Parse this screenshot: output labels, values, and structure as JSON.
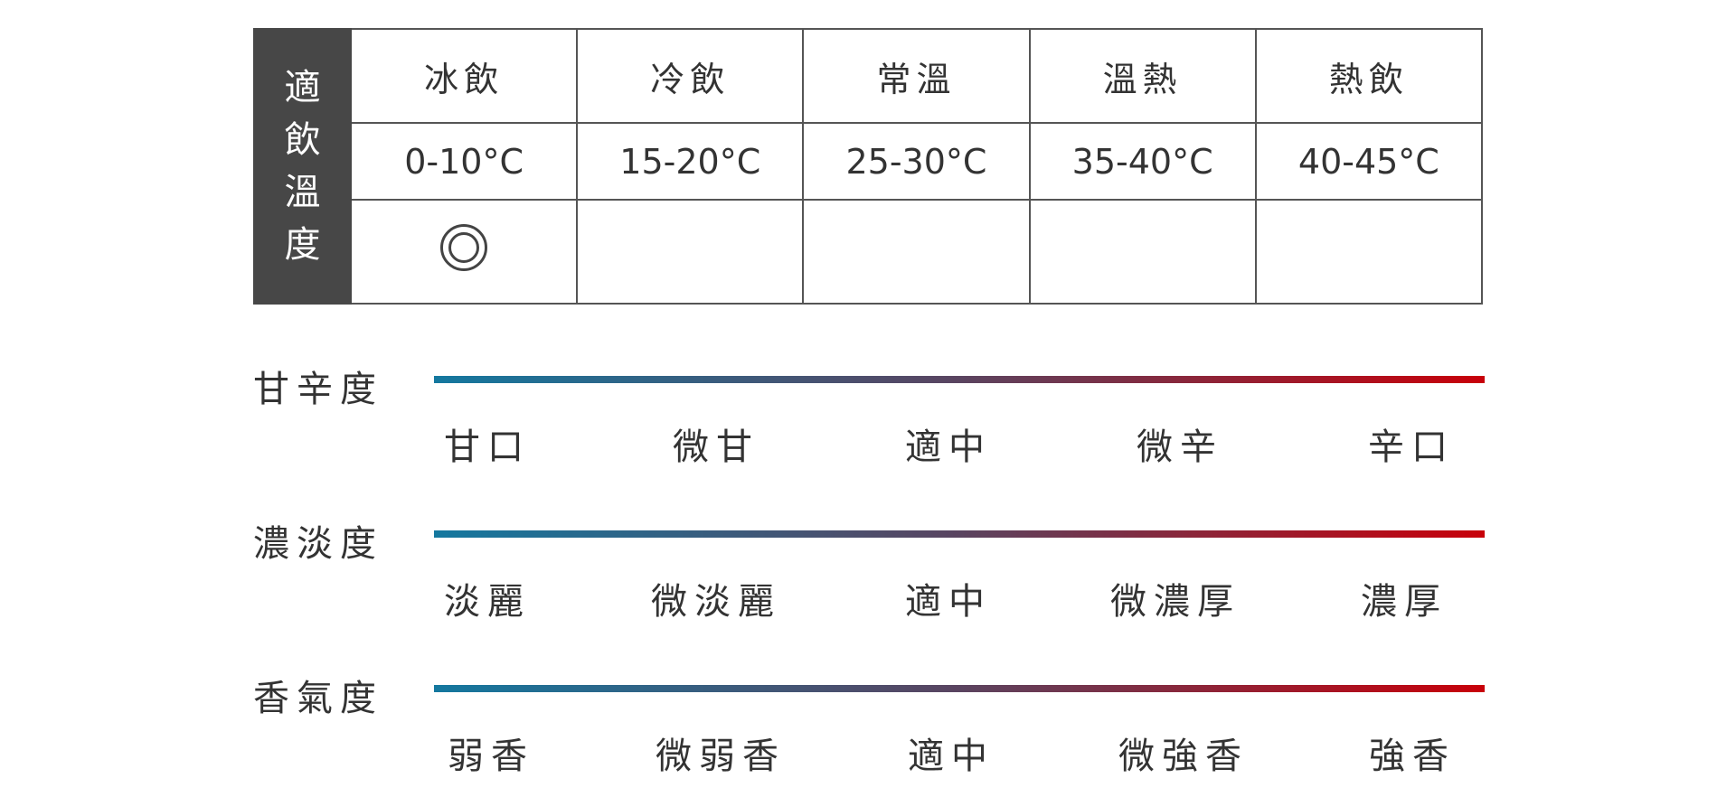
{
  "temperature_table": {
    "side_header": [
      "適",
      "飲",
      "溫",
      "度"
    ],
    "columns": [
      {
        "name": "冰飲",
        "range": "0-10°C",
        "recommended": true
      },
      {
        "name": "冷飲",
        "range": "15-20°C",
        "recommended": false
      },
      {
        "name": "常溫",
        "range": "25-30°C",
        "recommended": false
      },
      {
        "name": "溫熱",
        "range": "35-40°C",
        "recommended": false
      },
      {
        "name": "熱飲",
        "range": "40-45°C",
        "recommended": false
      }
    ],
    "mark_symbol": "double-circle"
  },
  "gradient": {
    "start": "#14789f",
    "mid": "#5a4460",
    "end": "#c8000a"
  },
  "scales": [
    {
      "title": "甘辛度",
      "labels": [
        "甘口",
        "微甘",
        "適中",
        "微辛",
        "辛口"
      ]
    },
    {
      "title": "濃淡度",
      "labels": [
        "淡麗",
        "微淡麗",
        "適中",
        "微濃厚",
        "濃厚"
      ]
    },
    {
      "title": "香氣度",
      "labels": [
        "弱香",
        "微弱香",
        "適中",
        "微強香",
        "強香"
      ]
    }
  ]
}
